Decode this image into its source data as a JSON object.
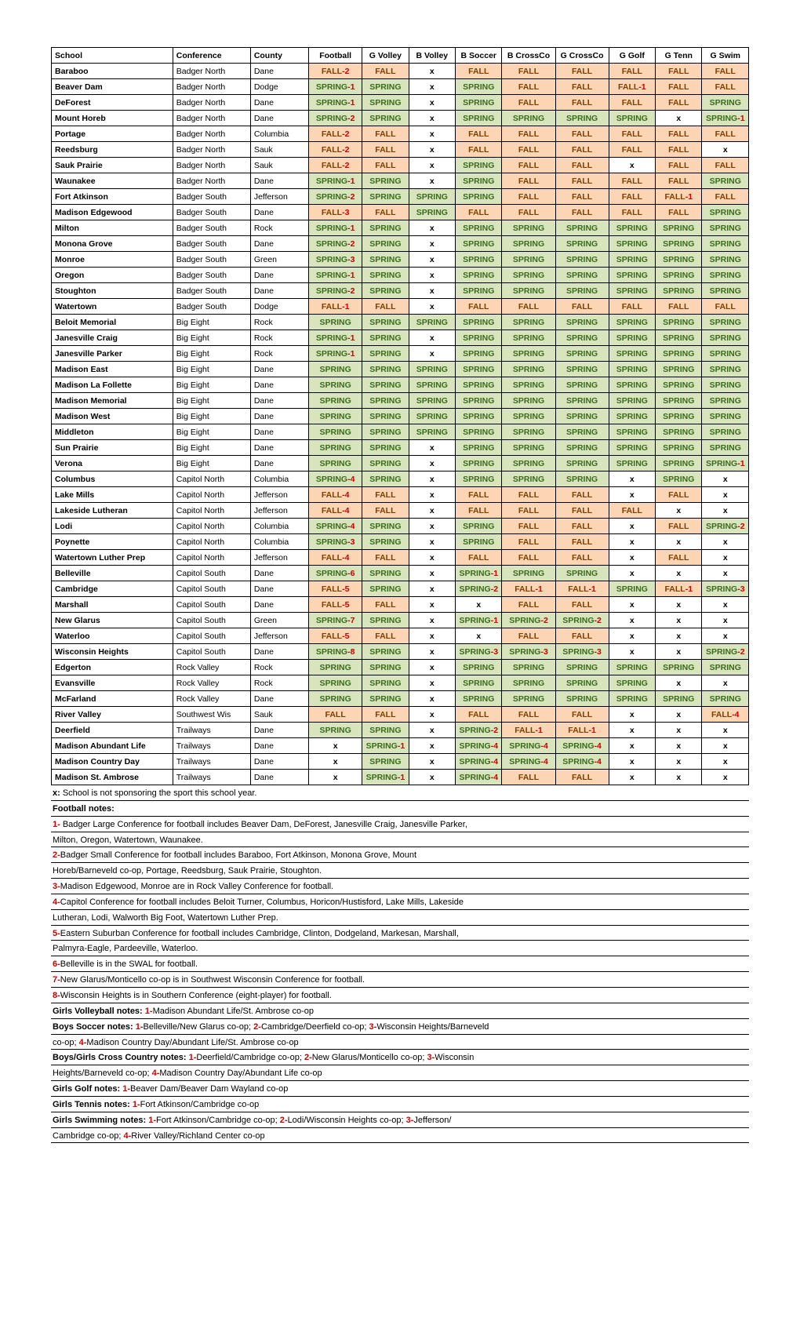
{
  "colors": {
    "fall_bg": "#fcd5b4",
    "fall_fg": "#7b3f00",
    "spring_bg": "#d8e4bc",
    "spring_fg": "#3a6b1f",
    "sup_color": "#cc0000"
  },
  "columns": [
    {
      "key": "school",
      "label": "School",
      "class": "col-school",
      "align": "left"
    },
    {
      "key": "conf",
      "label": "Conference",
      "class": "col-conf",
      "align": "left"
    },
    {
      "key": "county",
      "label": "County",
      "class": "col-county",
      "align": "left"
    },
    {
      "key": "football",
      "label": "Football",
      "class": "col-sport",
      "align": "center"
    },
    {
      "key": "gvolley",
      "label": "G Volley",
      "class": "col-sport-narrow",
      "align": "center"
    },
    {
      "key": "bvolley",
      "label": "B Volley",
      "class": "col-sport-narrow",
      "align": "center"
    },
    {
      "key": "bsoccer",
      "label": "B Soccer",
      "class": "col-sport-narrow",
      "align": "center"
    },
    {
      "key": "bcross",
      "label": "B CrossCo",
      "class": "col-sport",
      "align": "center"
    },
    {
      "key": "gcross",
      "label": "G CrossCo",
      "class": "col-sport",
      "align": "center"
    },
    {
      "key": "ggolf",
      "label": "G Golf",
      "class": "col-sport-narrow",
      "align": "center"
    },
    {
      "key": "gtenn",
      "label": "G Tenn",
      "class": "col-sport-narrow",
      "align": "center"
    },
    {
      "key": "gswim",
      "label": "G Swim",
      "class": "col-sport-narrow",
      "align": "center"
    }
  ],
  "rows": [
    {
      "school": "Baraboo",
      "conf": "Badger North",
      "county": "Dane",
      "cells": [
        "FALL-2",
        "FALL",
        "x",
        "FALL",
        "FALL",
        "FALL",
        "FALL",
        "FALL",
        "FALL"
      ]
    },
    {
      "school": "Beaver Dam",
      "conf": "Badger North",
      "county": "Dodge",
      "cells": [
        "SPRING-1",
        "SPRING",
        "x",
        "SPRING",
        "FALL",
        "FALL",
        "FALL-1",
        "FALL",
        "FALL"
      ]
    },
    {
      "school": "DeForest",
      "conf": "Badger North",
      "county": "Dane",
      "cells": [
        "SPRING-1",
        "SPRING",
        "x",
        "SPRING",
        "FALL",
        "FALL",
        "FALL",
        "FALL",
        "SPRING"
      ]
    },
    {
      "school": "Mount Horeb",
      "conf": "Badger North",
      "county": "Dane",
      "cells": [
        "SPRING-2",
        "SPRING",
        "x",
        "SPRING",
        "SPRING",
        "SPRING",
        "SPRING",
        "x",
        "SPRING-1"
      ]
    },
    {
      "school": "Portage",
      "conf": "Badger North",
      "county": "Columbia",
      "cells": [
        "FALL-2",
        "FALL",
        "x",
        "FALL",
        "FALL",
        "FALL",
        "FALL",
        "FALL",
        "FALL"
      ]
    },
    {
      "school": "Reedsburg",
      "conf": "Badger North",
      "county": "Sauk",
      "cells": [
        "FALL-2",
        "FALL",
        "x",
        "FALL",
        "FALL",
        "FALL",
        "FALL",
        "FALL",
        "x"
      ]
    },
    {
      "school": "Sauk Prairie",
      "conf": "Badger North",
      "county": "Sauk",
      "cells": [
        "FALL-2",
        "FALL",
        "x",
        "SPRING",
        "FALL",
        "FALL",
        "x",
        "FALL",
        "FALL"
      ]
    },
    {
      "school": "Waunakee",
      "conf": "Badger North",
      "county": "Dane",
      "cells": [
        "SPRING-1",
        "SPRING",
        "x",
        "SPRING",
        "FALL",
        "FALL",
        "FALL",
        "FALL",
        "SPRING"
      ]
    },
    {
      "school": "Fort Atkinson",
      "conf": "Badger South",
      "county": "Jefferson",
      "cells": [
        "SPRING-2",
        "SPRING",
        "SPRING",
        "SPRING",
        "FALL",
        "FALL",
        "FALL",
        "FALL-1",
        "FALL"
      ]
    },
    {
      "school": "Madison Edgewood",
      "conf": "Badger South",
      "county": "Dane",
      "cells": [
        "FALL-3",
        "FALL",
        "SPRING",
        "FALL",
        "FALL",
        "FALL",
        "FALL",
        "FALL",
        "SPRING"
      ]
    },
    {
      "school": "Milton",
      "conf": "Badger South",
      "county": "Rock",
      "cells": [
        "SPRING-1",
        "SPRING",
        "x",
        "SPRING",
        "SPRING",
        "SPRING",
        "SPRING",
        "SPRING",
        "SPRING"
      ]
    },
    {
      "school": "Monona Grove",
      "conf": "Badger South",
      "county": "Dane",
      "cells": [
        "SPRING-2",
        "SPRING",
        "x",
        "SPRING",
        "SPRING",
        "SPRING",
        "SPRING",
        "SPRING",
        "SPRING"
      ]
    },
    {
      "school": "Monroe",
      "conf": "Badger South",
      "county": "Green",
      "cells": [
        "SPRING-3",
        "SPRING",
        "x",
        "SPRING",
        "SPRING",
        "SPRING",
        "SPRING",
        "SPRING",
        "SPRING"
      ]
    },
    {
      "school": "Oregon",
      "conf": "Badger South",
      "county": "Dane",
      "cells": [
        "SPRING-1",
        "SPRING",
        "x",
        "SPRING",
        "SPRING",
        "SPRING",
        "SPRING",
        "SPRING",
        "SPRING"
      ]
    },
    {
      "school": "Stoughton",
      "conf": "Badger South",
      "county": "Dane",
      "cells": [
        "SPRING-2",
        "SPRING",
        "x",
        "SPRING",
        "SPRING",
        "SPRING",
        "SPRING",
        "SPRING",
        "SPRING"
      ]
    },
    {
      "school": "Watertown",
      "conf": "Badger South",
      "county": "Dodge",
      "cells": [
        "FALL-1",
        "FALL",
        "x",
        "FALL",
        "FALL",
        "FALL",
        "FALL",
        "FALL",
        "FALL"
      ]
    },
    {
      "school": "Beloit Memorial",
      "conf": "Big Eight",
      "county": "Rock",
      "cells": [
        "SPRING",
        "SPRING",
        "SPRING",
        "SPRING",
        "SPRING",
        "SPRING",
        "SPRING",
        "SPRING",
        "SPRING"
      ]
    },
    {
      "school": "Janesville Craig",
      "conf": "Big Eight",
      "county": "Rock",
      "cells": [
        "SPRING-1",
        "SPRING",
        "x",
        "SPRING",
        "SPRING",
        "SPRING",
        "SPRING",
        "SPRING",
        "SPRING"
      ]
    },
    {
      "school": "Janesville Parker",
      "conf": "Big Eight",
      "county": "Rock",
      "cells": [
        "SPRING-1",
        "SPRING",
        "x",
        "SPRING",
        "SPRING",
        "SPRING",
        "SPRING",
        "SPRING",
        "SPRING"
      ]
    },
    {
      "school": "Madison East",
      "conf": "Big Eight",
      "county": "Dane",
      "cells": [
        "SPRING",
        "SPRING",
        "SPRING",
        "SPRING",
        "SPRING",
        "SPRING",
        "SPRING",
        "SPRING",
        "SPRING"
      ]
    },
    {
      "school": "Madison La Follette",
      "conf": "Big Eight",
      "county": "Dane",
      "cells": [
        "SPRING",
        "SPRING",
        "SPRING",
        "SPRING",
        "SPRING",
        "SPRING",
        "SPRING",
        "SPRING",
        "SPRING"
      ]
    },
    {
      "school": "Madison Memorial",
      "conf": "Big Eight",
      "county": "Dane",
      "cells": [
        "SPRING",
        "SPRING",
        "SPRING",
        "SPRING",
        "SPRING",
        "SPRING",
        "SPRING",
        "SPRING",
        "SPRING"
      ]
    },
    {
      "school": "Madison West",
      "conf": "Big Eight",
      "county": "Dane",
      "cells": [
        "SPRING",
        "SPRING",
        "SPRING",
        "SPRING",
        "SPRING",
        "SPRING",
        "SPRING",
        "SPRING",
        "SPRING"
      ]
    },
    {
      "school": "Middleton",
      "conf": "Big Eight",
      "county": "Dane",
      "cells": [
        "SPRING",
        "SPRING",
        "SPRING",
        "SPRING",
        "SPRING",
        "SPRING",
        "SPRING",
        "SPRING",
        "SPRING"
      ]
    },
    {
      "school": "Sun Prairie",
      "conf": "Big Eight",
      "county": "Dane",
      "cells": [
        "SPRING",
        "SPRING",
        "x",
        "SPRING",
        "SPRING",
        "SPRING",
        "SPRING",
        "SPRING",
        "SPRING"
      ]
    },
    {
      "school": "Verona",
      "conf": "Big Eight",
      "county": "Dane",
      "cells": [
        "SPRING",
        "SPRING",
        "x",
        "SPRING",
        "SPRING",
        "SPRING",
        "SPRING",
        "SPRING",
        "SPRING-1"
      ]
    },
    {
      "school": "Columbus",
      "conf": "Capitol North",
      "county": "Columbia",
      "cells": [
        "SPRING-4",
        "SPRING",
        "x",
        "SPRING",
        "SPRING",
        "SPRING",
        "x",
        "SPRING",
        "x"
      ]
    },
    {
      "school": "Lake Mills",
      "conf": "Capitol North",
      "county": "Jefferson",
      "cells": [
        "FALL-4",
        "FALL",
        "x",
        "FALL",
        "FALL",
        "FALL",
        "x",
        "FALL",
        "x"
      ]
    },
    {
      "school": "Lakeside Lutheran",
      "conf": "Capitol North",
      "county": "Jefferson",
      "cells": [
        "FALL-4",
        "FALL",
        "x",
        "FALL",
        "FALL",
        "FALL",
        "FALL",
        "x",
        "x"
      ]
    },
    {
      "school": "Lodi",
      "conf": "Capitol North",
      "county": "Columbia",
      "cells": [
        "SPRING-4",
        "SPRING",
        "x",
        "SPRING",
        "FALL",
        "FALL",
        "x",
        "FALL",
        "SPRING-2"
      ]
    },
    {
      "school": "Poynette",
      "conf": "Capitol North",
      "county": "Columbia",
      "cells": [
        "SPRING-3",
        "SPRING",
        "x",
        "SPRING",
        "FALL",
        "FALL",
        "x",
        "x",
        "x"
      ]
    },
    {
      "school": "Watertown Luther Prep",
      "conf": "Capitol North",
      "county": "Jefferson",
      "cells": [
        "FALL-4",
        "FALL",
        "x",
        "FALL",
        "FALL",
        "FALL",
        "x",
        "FALL",
        "x"
      ]
    },
    {
      "school": "Belleville",
      "conf": "Capitol South",
      "county": "Dane",
      "cells": [
        "SPRING-6",
        "SPRING",
        "x",
        "SPRING-1",
        "SPRING",
        "SPRING",
        "x",
        "x",
        "x"
      ]
    },
    {
      "school": "Cambridge",
      "conf": "Capitol South",
      "county": "Dane",
      "cells": [
        "FALL-5",
        "SPRING",
        "x",
        "SPRING-2",
        "FALL-1",
        "FALL-1",
        "SPRING",
        "FALL-1",
        "SPRING-3"
      ]
    },
    {
      "school": "Marshall",
      "conf": "Capitol South",
      "county": "Dane",
      "cells": [
        "FALL-5",
        "FALL",
        "x",
        "x",
        "FALL",
        "FALL",
        "x",
        "x",
        "x"
      ]
    },
    {
      "school": "New Glarus",
      "conf": "Capitol South",
      "county": "Green",
      "cells": [
        "SPRING-7",
        "SPRING",
        "x",
        "SPRING-1",
        "SPRING-2",
        "SPRING-2",
        "x",
        "x",
        "x"
      ]
    },
    {
      "school": "Waterloo",
      "conf": "Capitol South",
      "county": "Jefferson",
      "cells": [
        "FALL-5",
        "FALL",
        "x",
        "x",
        "FALL",
        "FALL",
        "x",
        "x",
        "x"
      ]
    },
    {
      "school": "Wisconsin Heights",
      "conf": "Capitol South",
      "county": "Dane",
      "cells": [
        "SPRING-8",
        "SPRING",
        "x",
        "SPRING-3",
        "SPRING-3",
        "SPRING-3",
        "x",
        "x",
        "SPRING-2"
      ]
    },
    {
      "school": "Edgerton",
      "conf": "Rock Valley",
      "county": "Rock",
      "cells": [
        "SPRING",
        "SPRING",
        "x",
        "SPRING",
        "SPRING",
        "SPRING",
        "SPRING",
        "SPRING",
        "SPRING"
      ]
    },
    {
      "school": "Evansville",
      "conf": "Rock Valley",
      "county": "Rock",
      "cells": [
        "SPRING",
        "SPRING",
        "x",
        "SPRING",
        "SPRING",
        "SPRING",
        "SPRING",
        "x",
        "x"
      ]
    },
    {
      "school": "McFarland",
      "conf": "Rock Valley",
      "county": "Dane",
      "cells": [
        "SPRING",
        "SPRING",
        "x",
        "SPRING",
        "SPRING",
        "SPRING",
        "SPRING",
        "SPRING",
        "SPRING"
      ]
    },
    {
      "school": "River Valley",
      "conf": "Southwest Wis",
      "county": "Sauk",
      "cells": [
        "FALL",
        "FALL",
        "x",
        "FALL",
        "FALL",
        "FALL",
        "x",
        "x",
        "FALL-4"
      ]
    },
    {
      "school": "Deerfield",
      "conf": "Trailways",
      "county": "Dane",
      "cells": [
        "SPRING",
        "SPRING",
        "x",
        "SPRING-2",
        "FALL-1",
        "FALL-1",
        "x",
        "x",
        "x"
      ]
    },
    {
      "school": "Madison Abundant Life",
      "conf": "Trailways",
      "county": "Dane",
      "cells": [
        "x",
        "SPRING-1",
        "x",
        "SPRING-4",
        "SPRING-4",
        "SPRING-4",
        "x",
        "x",
        "x"
      ]
    },
    {
      "school": "Madison Country Day",
      "conf": "Trailways",
      "county": "Dane",
      "cells": [
        "x",
        "SPRING",
        "x",
        "SPRING-4",
        "SPRING-4",
        "SPRING-4",
        "x",
        "x",
        "x"
      ]
    },
    {
      "school": "Madison St. Ambrose",
      "conf": "Trailways",
      "county": "Dane",
      "cells": [
        "x",
        "SPRING-1",
        "x",
        "SPRING-4",
        "FALL",
        "FALL",
        "x",
        "x",
        "x"
      ]
    }
  ],
  "notes": [
    {
      "bold": true,
      "text": "x: School is not sponsoring the sport this school year.",
      "plain": true,
      "boldPrefix": "x:"
    },
    {
      "bold": true,
      "text": "Football notes:"
    },
    {
      "text": "1- Badger Large Conference for football includes Beaver Dam, DeForest, Janesville Craig, Janesville Parker,",
      "sup": "1-"
    },
    {
      "text": "Milton, Oregon, Watertown, Waunakee."
    },
    {
      "text": "2-Badger Small Conference for football includes Baraboo, Fort Atkinson, Monona Grove, Mount",
      "sup": "2-"
    },
    {
      "text": "Horeb/Barneveld co-op, Portage, Reedsburg, Sauk Prairie, Stoughton."
    },
    {
      "text": "3-Madison Edgewood, Monroe are in Rock Valley Conference for football.",
      "sup": "3-"
    },
    {
      "text": "4-Capitol Conference for football includes Beloit Turner, Columbus, Horicon/Hustisford, Lake Mills, Lakeside",
      "sup": "4-"
    },
    {
      "text": "Lutheran, Lodi, Walworth Big Foot, Watertown Luther Prep."
    },
    {
      "text": "5-Eastern Suburban Conference for football includes Cambridge, Clinton, Dodgeland, Markesan, Marshall,",
      "sup": "5-"
    },
    {
      "text": "Palmyra-Eagle, Pardeeville, Waterloo."
    },
    {
      "text": "6-Belleville is in the SWAL for football.",
      "sup": "6-"
    },
    {
      "text": "7-New Glarus/Monticello co-op is in Southwest Wisconsin Conference for football.",
      "sup": "7-"
    },
    {
      "text": "8-Wisconsin Heights is in Southern Conference (eight-player) for football.",
      "sup": "8-"
    },
    {
      "bold": true,
      "sup": "1-",
      "boldPrefix": "Girls Volleyball notes: ",
      "text": "Girls Volleyball notes: 1-Madison Abundant Life/St. Ambrose co-op"
    },
    {
      "bold": true,
      "sup": "1-",
      "boldPrefix": "Boys Soccer notes: ",
      "text": "Boys Soccer notes: 1-Belleville/New Glarus co-op; 2-Cambridge/Deerfield co-op; 3-Wisconsin Heights/Barneveld",
      "sups": [
        "1-",
        "2-",
        "3-"
      ]
    },
    {
      "text": "co-op; 4-Madison Country Day/Abundant Life/St. Ambrose co-op",
      "sups": [
        "4-"
      ]
    },
    {
      "bold": true,
      "boldPrefix": "Boys/Girls Cross Country notes: ",
      "text": "Boys/Girls Cross Country notes: 1-Deerfield/Cambridge co-op; 2-New Glarus/Monticello co-op; 3-Wisconsin",
      "sups": [
        "1-",
        "2-",
        "3-"
      ]
    },
    {
      "text": "Heights/Barneveld co-op; 4-Madison Country Day/Abundant Life co-op",
      "sups": [
        "4-"
      ]
    },
    {
      "bold": true,
      "boldPrefix": "Girls Golf notes: ",
      "text": "Girls Golf notes: 1-Beaver Dam/Beaver Dam Wayland co-op",
      "sups": [
        "1-"
      ]
    },
    {
      "bold": true,
      "boldPrefix": "Girls Tennis notes: ",
      "text": "Girls Tennis notes: 1-Fort Atkinson/Cambridge co-op",
      "sups": [
        "1-"
      ]
    },
    {
      "bold": true,
      "boldPrefix": "Girls Swimming notes: ",
      "text": "Girls Swimming notes: 1-Fort Atkinson/Cambridge co-op; 2-Lodi/Wisconsin Heights co-op; 3-Jefferson/",
      "sups": [
        "1-",
        "2-",
        "3-"
      ]
    },
    {
      "text": "Cambridge co-op; 4-River Valley/Richland Center co-op",
      "sups": [
        "4-"
      ]
    }
  ]
}
